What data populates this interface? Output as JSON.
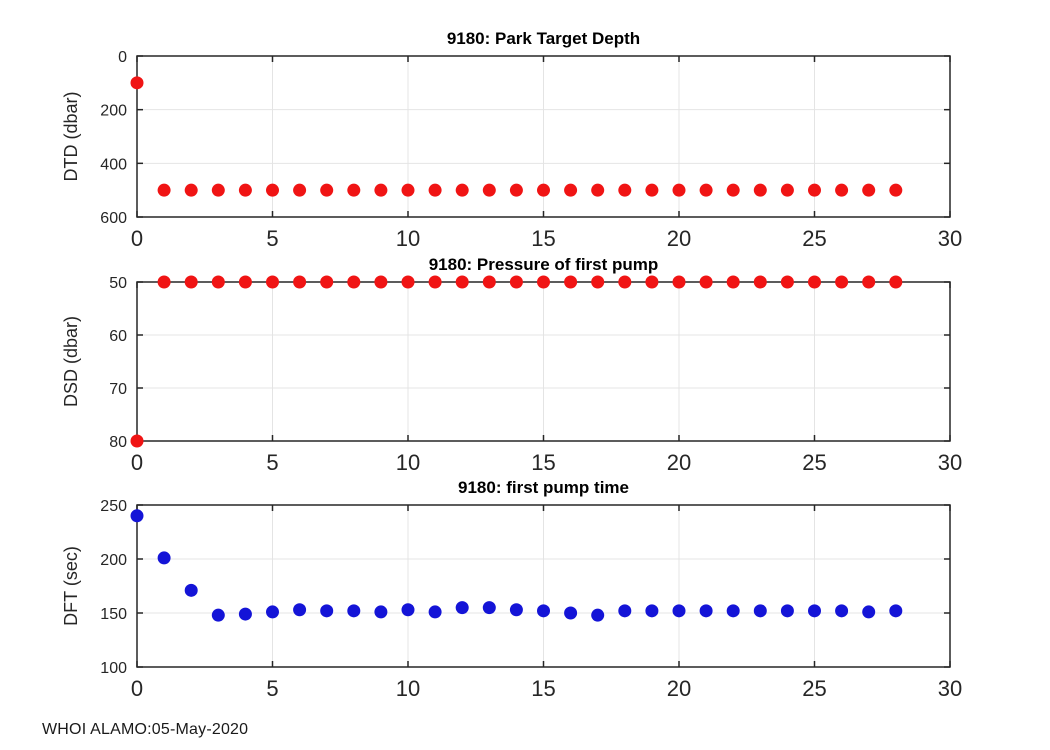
{
  "figure": {
    "background": "#ffffff",
    "footer": "WHOI ALAMO:05-May-2020"
  },
  "style": {
    "red_marker": "#f01414",
    "blue_marker": "#1414d7",
    "axis_color": "#262626",
    "grid_color": "#e4e4e4",
    "title_color": "#000000"
  },
  "chart_data": [
    {
      "type": "scatter",
      "title": "9180: Park Target Depth",
      "ylabel": "DTD (dbar)",
      "xlabel": "",
      "marker": "filled-circle",
      "marker_color": "#f01414",
      "grid": true,
      "legend": "none",
      "xlim": [
        0,
        30
      ],
      "ylim": [
        0,
        600
      ],
      "y_reversed": true,
      "xticks": [
        0,
        5,
        10,
        15,
        20,
        25,
        30
      ],
      "yticks": [
        0,
        200,
        400,
        600
      ],
      "x": [
        0,
        1,
        2,
        3,
        4,
        5,
        6,
        7,
        8,
        9,
        10,
        11,
        12,
        13,
        14,
        15,
        16,
        17,
        18,
        19,
        20,
        21,
        22,
        23,
        24,
        25,
        26,
        27,
        28
      ],
      "y": [
        100,
        500,
        500,
        500,
        500,
        500,
        500,
        500,
        500,
        500,
        500,
        500,
        500,
        500,
        500,
        500,
        500,
        500,
        500,
        500,
        500,
        500,
        500,
        500,
        500,
        500,
        500,
        500,
        500
      ]
    },
    {
      "type": "scatter",
      "title": "9180: Pressure of first pump",
      "ylabel": "DSD (dbar)",
      "xlabel": "",
      "marker": "filled-circle",
      "marker_color": "#f01414",
      "grid": true,
      "legend": "none",
      "xlim": [
        0,
        30
      ],
      "ylim": [
        50,
        80
      ],
      "y_reversed": true,
      "xticks": [
        0,
        5,
        10,
        15,
        20,
        25,
        30
      ],
      "yticks": [
        50,
        60,
        70,
        80
      ],
      "x": [
        0,
        1,
        2,
        3,
        4,
        5,
        6,
        7,
        8,
        9,
        10,
        11,
        12,
        13,
        14,
        15,
        16,
        17,
        18,
        19,
        20,
        21,
        22,
        23,
        24,
        25,
        26,
        27,
        28
      ],
      "y": [
        80,
        50,
        50,
        50,
        50,
        50,
        50,
        50,
        50,
        50,
        50,
        50,
        50,
        50,
        50,
        50,
        50,
        50,
        50,
        50,
        50,
        50,
        50,
        50,
        50,
        50,
        50,
        50,
        50
      ]
    },
    {
      "type": "scatter",
      "title": "9180: first pump time",
      "ylabel": "DFT (sec)",
      "xlabel": "",
      "marker": "filled-circle",
      "marker_color": "#1414d7",
      "grid": true,
      "legend": "none",
      "xlim": [
        0,
        30
      ],
      "ylim": [
        100,
        250
      ],
      "y_reversed": false,
      "xticks": [
        0,
        5,
        10,
        15,
        20,
        25,
        30
      ],
      "yticks": [
        100,
        150,
        200,
        250
      ],
      "x": [
        0,
        1,
        2,
        3,
        4,
        5,
        6,
        7,
        8,
        9,
        10,
        11,
        12,
        13,
        14,
        15,
        16,
        17,
        18,
        19,
        20,
        21,
        22,
        23,
        24,
        25,
        26,
        27,
        28
      ],
      "y": [
        240,
        201,
        171,
        148,
        149,
        151,
        153,
        152,
        152,
        151,
        153,
        151,
        155,
        155,
        153,
        152,
        150,
        148,
        152,
        152,
        152,
        152,
        152,
        152,
        152,
        152,
        152,
        151,
        152
      ]
    }
  ]
}
